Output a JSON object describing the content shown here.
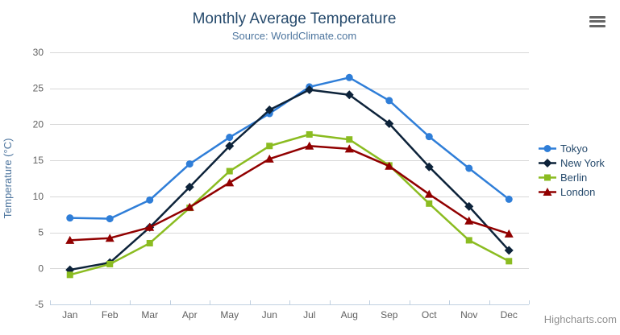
{
  "chart_data": {
    "type": "line",
    "title": "Monthly Average Temperature",
    "subtitle": "Source: WorldClimate.com",
    "categories": [
      "Jan",
      "Feb",
      "Mar",
      "Apr",
      "May",
      "Jun",
      "Jul",
      "Aug",
      "Sep",
      "Oct",
      "Nov",
      "Dec"
    ],
    "xlabel": "",
    "ylabel": "Temperature (°C)",
    "yAxis": {
      "title": "Temperature (°C)",
      "min": -5,
      "max": 30,
      "tickInterval": 5
    },
    "ylim": [
      -5,
      30
    ],
    "grid": true,
    "legend_position": "right",
    "series": [
      {
        "name": "Tokyo",
        "color": "#2f7ed8",
        "marker": "circle",
        "values": [
          7.0,
          6.9,
          9.5,
          14.5,
          18.2,
          21.5,
          25.2,
          26.5,
          23.3,
          18.3,
          13.9,
          9.6
        ]
      },
      {
        "name": "New York",
        "color": "#0d233a",
        "marker": "diamond",
        "values": [
          -0.2,
          0.8,
          5.7,
          11.3,
          17.0,
          22.0,
          24.8,
          24.1,
          20.1,
          14.1,
          8.6,
          2.5
        ]
      },
      {
        "name": "Berlin",
        "color": "#8bbc21",
        "marker": "square",
        "values": [
          -0.9,
          0.6,
          3.5,
          8.4,
          13.5,
          17.0,
          18.6,
          17.9,
          14.3,
          9.0,
          3.9,
          1.0
        ]
      },
      {
        "name": "London",
        "color": "#910000",
        "marker": "triangle",
        "values": [
          3.9,
          4.2,
          5.7,
          8.5,
          11.9,
          15.2,
          17.0,
          16.6,
          14.2,
          10.3,
          6.6,
          4.8
        ]
      }
    ]
  },
  "credits": "Highcharts.com",
  "export_menu_icon": "hamburger-icon",
  "theme": {
    "background": "#ffffff",
    "title_color": "#274b6d",
    "subtitle_color": "#4d759e",
    "axis_title_color": "#4d759e",
    "axis_label_color": "#606060",
    "axis_line_color": "#c0d0e0",
    "gridline_color": "#d8d8d8",
    "legend_text_color": "#274b6d",
    "credits_color": "#909090",
    "export_icon_color": "#666666"
  }
}
